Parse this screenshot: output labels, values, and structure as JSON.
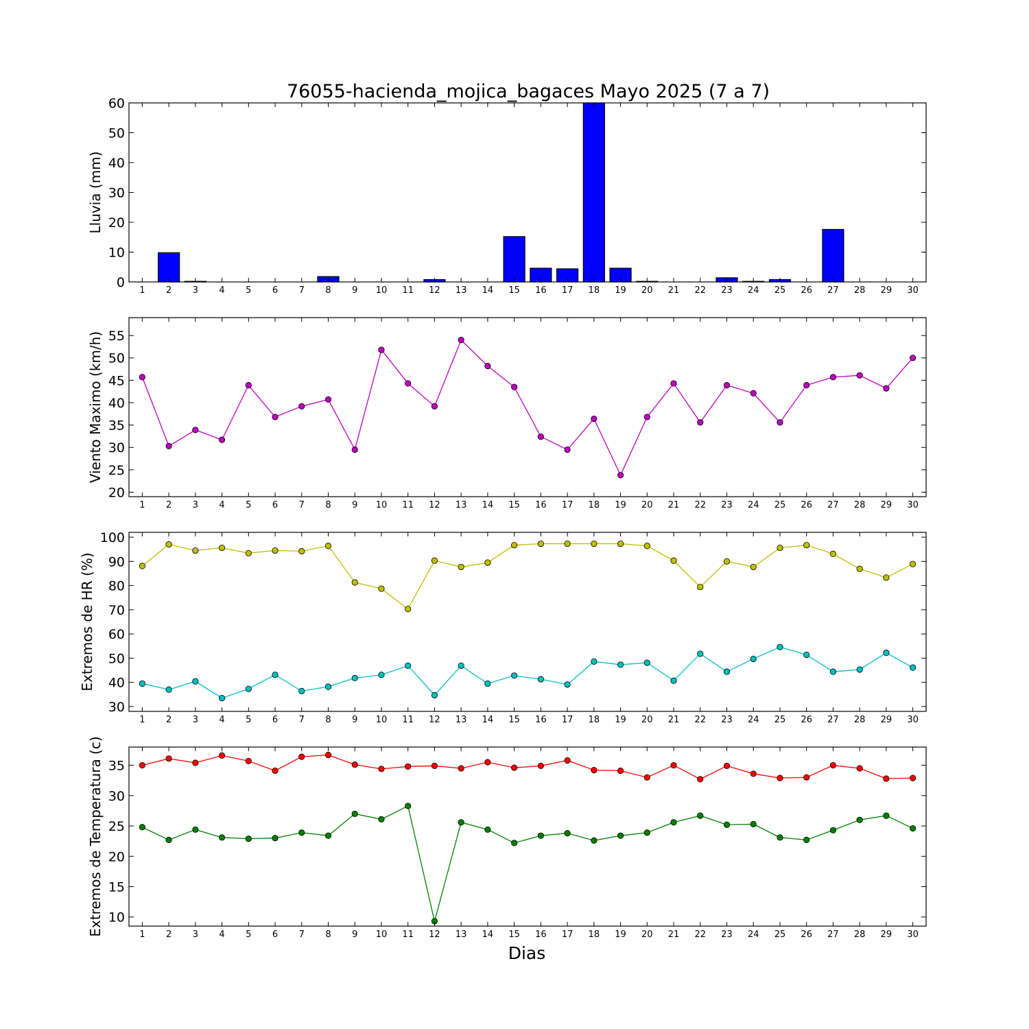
{
  "title": "76055-hacienda_mojica_bagaces Mayo 2025  (7 a 7)",
  "xlabel": "Dias",
  "chart_data": [
    {
      "type": "bar",
      "ylabel": "Lluvia (mm)",
      "ylim": [
        0,
        60
      ],
      "yticks": [
        0,
        10,
        20,
        30,
        40,
        50,
        60
      ],
      "categories": [
        1,
        2,
        3,
        4,
        5,
        6,
        7,
        8,
        9,
        10,
        11,
        12,
        13,
        14,
        15,
        16,
        17,
        18,
        19,
        20,
        21,
        22,
        23,
        24,
        25,
        26,
        27,
        28,
        29,
        30
      ],
      "series": [
        {
          "color": "#0000ff",
          "values": [
            0,
            9.8,
            0.2,
            0,
            0,
            0,
            0,
            1.8,
            0,
            0,
            0,
            0.8,
            0,
            0,
            15.2,
            4.6,
            4.4,
            60,
            4.6,
            0.2,
            0,
            0,
            1.4,
            0.2,
            0.8,
            0,
            17.6,
            0,
            0,
            0
          ]
        }
      ]
    },
    {
      "type": "line",
      "ylabel": "Viento Maximo (km/h)",
      "ylim": [
        19,
        59
      ],
      "yticks": [
        20,
        25,
        30,
        35,
        40,
        45,
        50,
        55
      ],
      "categories": [
        1,
        2,
        3,
        4,
        5,
        6,
        7,
        8,
        9,
        10,
        11,
        12,
        13,
        14,
        15,
        16,
        17,
        18,
        19,
        20,
        21,
        22,
        23,
        24,
        25,
        26,
        27,
        28,
        29,
        30
      ],
      "series": [
        {
          "color": "#bf00bf",
          "values": [
            45.7,
            30.3,
            33.9,
            31.7,
            43.9,
            36.8,
            39.2,
            40.7,
            29.5,
            51.8,
            44.3,
            39.2,
            54.0,
            48.2,
            43.5,
            32.4,
            29.5,
            36.4,
            23.8,
            36.8,
            44.3,
            35.6,
            43.9,
            42.1,
            35.6,
            43.9,
            45.7,
            46.1,
            43.2,
            50.0
          ]
        }
      ]
    },
    {
      "type": "line",
      "ylabel": "Extremos de HR (%)",
      "ylim": [
        28,
        102
      ],
      "yticks": [
        30,
        40,
        50,
        60,
        70,
        80,
        90,
        100
      ],
      "categories": [
        1,
        2,
        3,
        4,
        5,
        6,
        7,
        8,
        9,
        10,
        11,
        12,
        13,
        14,
        15,
        16,
        17,
        18,
        19,
        20,
        21,
        22,
        23,
        24,
        25,
        26,
        27,
        28,
        29,
        30
      ],
      "series": [
        {
          "color": "#bfbf00",
          "values": [
            88.1,
            97.0,
            94.5,
            95.6,
            93.4,
            94.5,
            94.2,
            96.4,
            81.3,
            78.7,
            70.3,
            90.3,
            87.7,
            89.5,
            96.7,
            97.3,
            97.3,
            97.3,
            97.3,
            96.4,
            90.3,
            79.4,
            90.0,
            87.7,
            95.6,
            96.7,
            93.1,
            86.9,
            83.3,
            88.9
          ]
        },
        {
          "color": "#00bfbf",
          "values": [
            39.5,
            37.0,
            40.4,
            33.5,
            37.3,
            43.1,
            36.4,
            38.2,
            41.8,
            43.1,
            46.9,
            34.7,
            46.9,
            39.5,
            42.8,
            41.3,
            39.1,
            48.6,
            47.3,
            48.1,
            40.7,
            51.8,
            44.4,
            49.7,
            54.6,
            51.4,
            44.4,
            45.3,
            52.2,
            46.1
          ]
        }
      ]
    },
    {
      "type": "line",
      "ylabel": "Extremos de Temperatura (c)",
      "ylim": [
        8.5,
        38
      ],
      "yticks": [
        10,
        15,
        20,
        25,
        30,
        35
      ],
      "categories": [
        1,
        2,
        3,
        4,
        5,
        6,
        7,
        8,
        9,
        10,
        11,
        12,
        13,
        14,
        15,
        16,
        17,
        18,
        19,
        20,
        21,
        22,
        23,
        24,
        25,
        26,
        27,
        28,
        29,
        30
      ],
      "series": [
        {
          "color": "#ff0000",
          "values": [
            35.0,
            36.1,
            35.4,
            36.6,
            35.7,
            34.1,
            36.4,
            36.7,
            35.1,
            34.4,
            34.8,
            34.9,
            34.5,
            35.5,
            34.6,
            34.9,
            35.8,
            34.2,
            34.1,
            33.0,
            35.0,
            32.7,
            34.9,
            33.6,
            32.9,
            33.0,
            35.0,
            34.5,
            32.8,
            32.9
          ]
        },
        {
          "color": "#008000",
          "values": [
            24.8,
            22.7,
            24.4,
            23.1,
            22.9,
            23.0,
            23.9,
            23.4,
            27.0,
            26.1,
            28.3,
            9.3,
            25.6,
            24.4,
            22.2,
            23.4,
            23.8,
            22.6,
            23.4,
            23.9,
            25.6,
            26.7,
            25.2,
            25.3,
            23.1,
            22.7,
            24.3,
            26.0,
            26.7,
            24.6
          ]
        }
      ]
    }
  ]
}
